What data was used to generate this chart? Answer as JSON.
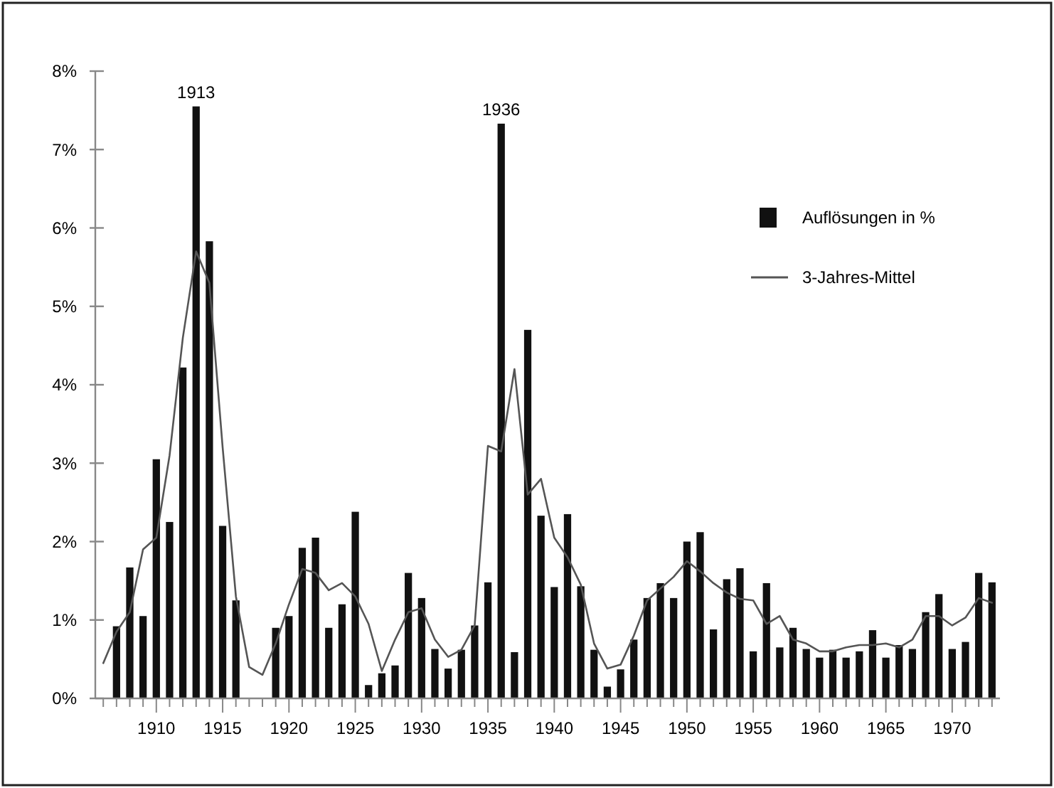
{
  "chart_data": {
    "type": "bar",
    "x": [
      1907,
      1908,
      1909,
      1910,
      1911,
      1912,
      1913,
      1914,
      1915,
      1916,
      1919,
      1920,
      1921,
      1922,
      1923,
      1924,
      1925,
      1926,
      1927,
      1928,
      1929,
      1930,
      1931,
      1932,
      1933,
      1934,
      1935,
      1936,
      1937,
      1938,
      1939,
      1940,
      1941,
      1942,
      1943,
      1944,
      1945,
      1946,
      1947,
      1948,
      1949,
      1950,
      1951,
      1952,
      1953,
      1954,
      1955,
      1956,
      1957,
      1958,
      1959,
      1960,
      1961,
      1962,
      1963,
      1964,
      1965,
      1966,
      1967,
      1968,
      1969,
      1970,
      1971,
      1972,
      1973
    ],
    "series": [
      {
        "name": "Auflösungen in %",
        "color": "#111111",
        "values": [
          0.92,
          1.67,
          1.05,
          3.05,
          2.25,
          4.22,
          7.55,
          5.83,
          2.2,
          1.25,
          0.9,
          1.05,
          1.92,
          2.05,
          0.9,
          1.2,
          2.38,
          0.17,
          0.32,
          0.42,
          1.6,
          1.28,
          0.63,
          0.38,
          0.62,
          0.93,
          1.48,
          7.33,
          0.59,
          4.7,
          2.33,
          1.42,
          2.35,
          1.43,
          0.62,
          0.15,
          0.37,
          0.75,
          1.28,
          1.47,
          1.28,
          2.0,
          2.12,
          0.88,
          1.52,
          1.66,
          0.6,
          1.47,
          0.65,
          0.9,
          0.63,
          0.52,
          0.62,
          0.52,
          0.6,
          0.87,
          0.52,
          0.68,
          0.63,
          1.1,
          1.33,
          0.63,
          0.72,
          1.6,
          1.48
        ]
      },
      {
        "name": "3-Jahres-Mittel",
        "type": "line",
        "color": "#555555",
        "x": [
          1906,
          1907,
          1908,
          1909,
          1910,
          1911,
          1912,
          1913,
          1914,
          1915,
          1916,
          1917,
          1918,
          1919,
          1920,
          1921,
          1922,
          1923,
          1924,
          1925,
          1926,
          1927,
          1928,
          1929,
          1930,
          1931,
          1932,
          1933,
          1934,
          1935,
          1936,
          1937,
          1938,
          1939,
          1940,
          1941,
          1942,
          1943,
          1944,
          1945,
          1946,
          1947,
          1948,
          1949,
          1950,
          1951,
          1952,
          1953,
          1954,
          1955,
          1956,
          1957,
          1958,
          1959,
          1960,
          1961,
          1962,
          1963,
          1964,
          1965,
          1966,
          1967,
          1968,
          1969,
          1970,
          1971,
          1972,
          1973
        ],
        "values": [
          0.45,
          0.85,
          1.1,
          1.9,
          2.05,
          3.1,
          4.6,
          5.7,
          5.3,
          3.2,
          1.3,
          0.4,
          0.3,
          0.7,
          1.2,
          1.65,
          1.6,
          1.38,
          1.47,
          1.3,
          0.95,
          0.35,
          0.75,
          1.1,
          1.15,
          0.75,
          0.53,
          0.62,
          0.93,
          3.22,
          3.15,
          4.2,
          2.6,
          2.8,
          2.05,
          1.8,
          1.45,
          0.7,
          0.38,
          0.43,
          0.8,
          1.25,
          1.4,
          1.55,
          1.75,
          1.62,
          1.47,
          1.35,
          1.27,
          1.25,
          0.95,
          1.05,
          0.75,
          0.7,
          0.6,
          0.6,
          0.65,
          0.68,
          0.68,
          0.7,
          0.65,
          0.75,
          1.05,
          1.05,
          0.93,
          1.03,
          1.28,
          1.22
        ]
      }
    ],
    "xlim": [
      1905.4,
      1973.6
    ],
    "xticks": [
      {
        "value": 1906,
        "label": null
      },
      {
        "value": 1907,
        "label": null
      },
      {
        "value": 1908,
        "label": null
      },
      {
        "value": 1909,
        "label": null
      },
      1910,
      {
        "value": 1911,
        "label": null
      },
      {
        "value": 1912,
        "label": null
      },
      {
        "value": 1913,
        "label": null
      },
      {
        "value": 1914,
        "label": null
      },
      1915,
      {
        "value": 1916,
        "label": null
      },
      {
        "value": 1917,
        "label": null
      },
      {
        "value": 1918,
        "label": null
      },
      {
        "value": 1919,
        "label": null
      },
      1920,
      {
        "value": 1921,
        "label": null
      },
      {
        "value": 1922,
        "label": null
      },
      {
        "value": 1923,
        "label": null
      },
      {
        "value": 1924,
        "label": null
      },
      1925,
      {
        "value": 1926,
        "label": null
      },
      {
        "value": 1927,
        "label": null
      },
      {
        "value": 1928,
        "label": null
      },
      {
        "value": 1929,
        "label": null
      },
      1930,
      {
        "value": 1931,
        "label": null
      },
      {
        "value": 1932,
        "label": null
      },
      {
        "value": 1933,
        "label": null
      },
      {
        "value": 1934,
        "label": null
      },
      1935,
      {
        "value": 1936,
        "label": null
      },
      {
        "value": 1937,
        "label": null
      },
      {
        "value": 1938,
        "label": null
      },
      {
        "value": 1939,
        "label": null
      },
      1940,
      {
        "value": 1941,
        "label": null
      },
      {
        "value": 1942,
        "label": null
      },
      {
        "value": 1943,
        "label": null
      },
      {
        "value": 1944,
        "label": null
      },
      1945,
      {
        "value": 1946,
        "label": null
      },
      {
        "value": 1947,
        "label": null
      },
      {
        "value": 1948,
        "label": null
      },
      {
        "value": 1949,
        "label": null
      },
      1950,
      {
        "value": 1951,
        "label": null
      },
      {
        "value": 1952,
        "label": null
      },
      {
        "value": 1953,
        "label": null
      },
      {
        "value": 1954,
        "label": null
      },
      1955,
      {
        "value": 1956,
        "label": null
      },
      {
        "value": 1957,
        "label": null
      },
      {
        "value": 1958,
        "label": null
      },
      {
        "value": 1959,
        "label": null
      },
      1960,
      {
        "value": 1961,
        "label": null
      },
      {
        "value": 1962,
        "label": null
      },
      {
        "value": 1963,
        "label": null
      },
      {
        "value": 1964,
        "label": null
      },
      1965,
      {
        "value": 1966,
        "label": null
      },
      {
        "value": 1967,
        "label": null
      },
      {
        "value": 1968,
        "label": null
      },
      {
        "value": 1969,
        "label": null
      },
      1970,
      {
        "value": 1971,
        "label": null
      },
      {
        "value": 1972,
        "label": null
      },
      {
        "value": 1973,
        "label": null
      }
    ],
    "ylim": [
      0,
      8
    ],
    "yticks": [
      {
        "value": 0,
        "label": "0%"
      },
      {
        "value": 1,
        "label": "1%"
      },
      {
        "value": 2,
        "label": "2%"
      },
      {
        "value": 3,
        "label": "3%"
      },
      {
        "value": 4,
        "label": "4%"
      },
      {
        "value": 5,
        "label": "5%"
      },
      {
        "value": 6,
        "label": "6%"
      },
      {
        "value": 7,
        "label": "7%"
      },
      {
        "value": 8,
        "label": "8%"
      }
    ],
    "annotations": [
      {
        "text": "1913",
        "x": 1913,
        "y": 7.55
      },
      {
        "text": "1936",
        "x": 1936,
        "y": 7.33
      }
    ],
    "legend": "right",
    "grid": false
  }
}
